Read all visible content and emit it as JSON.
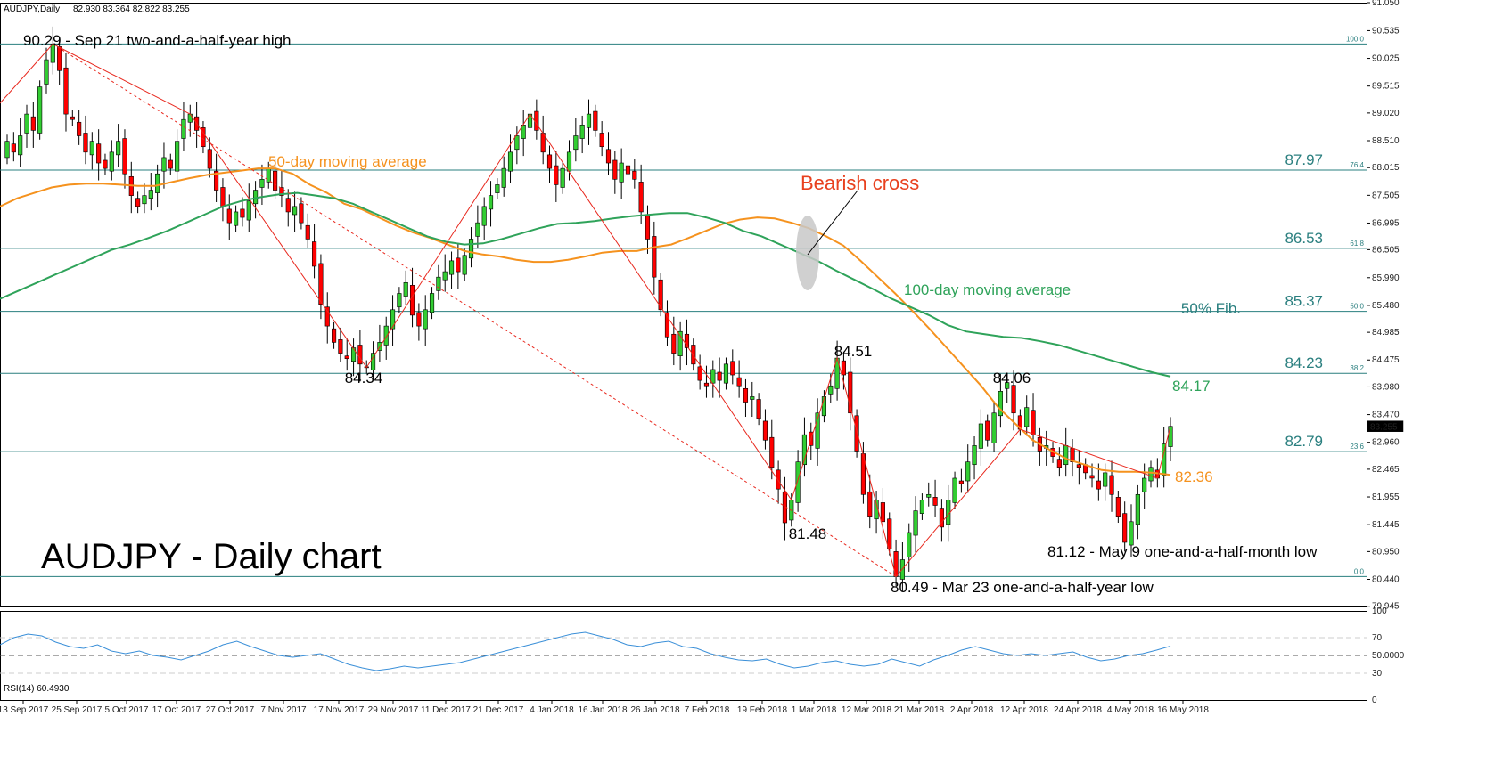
{
  "header": {
    "symbol": "AUDJPY,Daily",
    "ohlc": "82.930 83.364 82.822 83.255"
  },
  "big_title": "AUDJPY - Daily chart",
  "current_price": "83.255",
  "colors": {
    "bull": "#32cd32",
    "bear": "#ff0000",
    "ma50": "#f5921e",
    "ma100": "#2fa35a",
    "fib": "#2a7f7f",
    "zigzag": "#e8281e",
    "rsi": "#3a8fd8"
  },
  "chart_data": [
    {
      "type": "candlestick",
      "ylim": [
        79.94,
        91.05
      ],
      "y_ticks": [
        "91.050",
        "90.535",
        "90.025",
        "89.515",
        "89.020",
        "88.510",
        "88.015",
        "87.505",
        "86.995",
        "86.505",
        "85.990",
        "85.480",
        "84.985",
        "84.475",
        "83.980",
        "83.470",
        "82.960",
        "82.465",
        "81.955",
        "81.445",
        "80.950",
        "80.440",
        "79.945"
      ],
      "x_tick_labels": [
        "13 Sep 2017",
        "25 Sep 2017",
        "5 Oct 2017",
        "17 Oct 2017",
        "27 Oct 2017",
        "7 Nov 2017",
        "17 Nov 2017",
        "29 Nov 2017",
        "11 Dec 2017",
        "21 Dec 2017",
        "4 Jan 2018",
        "16 Jan 2018",
        "26 Jan 2018",
        "7 Feb 2018",
        "19 Feb 2018",
        "1 Mar 2018",
        "12 Mar 2018",
        "21 Mar 2018",
        "2 Apr 2018",
        "12 Apr 2018",
        "24 Apr 2018",
        "4 May 2018",
        "16 May 2018"
      ],
      "close": [
        88.5,
        88.3,
        88.6,
        89.0,
        88.7,
        89.5,
        90.0,
        90.29,
        89.8,
        89.0,
        88.9,
        88.6,
        88.3,
        88.5,
        88.1,
        88.0,
        88.3,
        88.5,
        87.9,
        87.5,
        87.3,
        87.5,
        87.6,
        87.9,
        88.2,
        88.0,
        88.5,
        88.9,
        89.0,
        88.7,
        88.4,
        88.0,
        87.6,
        87.3,
        87.0,
        87.2,
        87.1,
        87.4,
        87.6,
        87.8,
        88.0,
        87.6,
        87.5,
        87.2,
        87.3,
        87.0,
        86.7,
        86.2,
        85.5,
        85.1,
        84.8,
        84.6,
        84.5,
        84.7,
        84.4,
        84.34,
        84.6,
        84.8,
        85.1,
        85.4,
        85.7,
        85.9,
        85.3,
        85.1,
        85.4,
        85.7,
        86.0,
        86.1,
        86.3,
        86.1,
        86.4,
        86.7,
        87.0,
        87.3,
        87.5,
        87.7,
        88.0,
        88.3,
        88.6,
        88.8,
        89.0,
        88.7,
        88.3,
        88.0,
        87.7,
        88.0,
        88.3,
        88.6,
        88.8,
        89.0,
        88.7,
        88.4,
        88.1,
        87.8,
        88.1,
        87.9,
        87.8,
        87.2,
        86.7,
        86.0,
        85.4,
        84.9,
        84.6,
        85.0,
        84.7,
        84.4,
        84.1,
        84.0,
        84.3,
        84.1,
        84.4,
        84.2,
        84.0,
        83.7,
        83.8,
        83.4,
        83.0,
        82.5,
        82.1,
        81.48,
        81.9,
        82.6,
        83.1,
        82.9,
        83.5,
        83.8,
        84.0,
        84.51,
        84.2,
        83.5,
        82.8,
        82.0,
        81.6,
        81.9,
        81.5,
        81.0,
        80.49,
        80.8,
        81.3,
        81.7,
        81.9,
        82.0,
        81.8,
        81.4,
        81.9,
        82.3,
        82.2,
        82.6,
        82.9,
        83.3,
        83.0,
        83.5,
        83.9,
        84.06,
        83.5,
        83.2,
        83.6,
        83.1,
        82.8,
        82.9,
        82.7,
        82.5,
        82.9,
        82.6,
        82.5,
        82.4,
        82.3,
        82.1,
        82.4,
        82.0,
        81.6,
        81.12,
        81.5,
        82.0,
        82.3,
        82.5,
        82.3,
        82.93,
        83.255
      ],
      "series": [
        {
          "name": "50-day moving average",
          "values": [
            87.3,
            87.45,
            87.55,
            87.65,
            87.7,
            87.72,
            87.72,
            87.7,
            87.68,
            87.68,
            87.75,
            87.82,
            87.88,
            87.92,
            87.96,
            88.0,
            88.0,
            87.9,
            87.7,
            87.55,
            87.35,
            87.25,
            87.1,
            86.95,
            86.82,
            86.72,
            86.6,
            86.48,
            86.42,
            86.38,
            86.32,
            86.28,
            86.28,
            86.32,
            86.38,
            86.45,
            86.48,
            86.48,
            86.55,
            86.6,
            86.72,
            86.85,
            86.98,
            87.06,
            87.1,
            87.08,
            87.0,
            86.9,
            86.75,
            86.58,
            86.3,
            86.0,
            85.7,
            85.38,
            85.05,
            84.7,
            84.35,
            84.0,
            83.6,
            83.3,
            83.0,
            82.82,
            82.65,
            82.55,
            82.45,
            82.42,
            82.42,
            82.4,
            82.36
          ]
        },
        {
          "name": "100-day moving average",
          "values": [
            85.6,
            85.75,
            85.9,
            86.05,
            86.2,
            86.35,
            86.5,
            86.6,
            86.72,
            86.85,
            87.0,
            87.15,
            87.3,
            87.4,
            87.47,
            87.52,
            87.55,
            87.5,
            87.45,
            87.35,
            87.2,
            87.05,
            86.9,
            86.75,
            86.65,
            86.6,
            86.62,
            86.7,
            86.8,
            86.9,
            86.98,
            87.0,
            87.03,
            87.08,
            87.12,
            87.15,
            87.18,
            87.18,
            87.1,
            87.0,
            86.85,
            86.75,
            86.6,
            86.45,
            86.3,
            86.12,
            85.95,
            85.78,
            85.6,
            85.45,
            85.3,
            85.12,
            85.0,
            84.95,
            84.9,
            84.88,
            84.82,
            84.75,
            84.65,
            84.55,
            84.45,
            84.35,
            84.25,
            84.17
          ]
        },
        {
          "name": "RSI(14) 60.4930",
          "values": [
            62,
            70,
            74,
            72,
            65,
            60,
            58,
            62,
            55,
            52,
            55,
            50,
            48,
            45,
            50,
            55,
            62,
            66,
            60,
            55,
            50,
            48,
            50,
            52,
            46,
            40,
            36,
            33,
            35,
            38,
            36,
            38,
            40,
            42,
            46,
            50,
            54,
            58,
            62,
            66,
            70,
            74,
            76,
            72,
            68,
            62,
            60,
            64,
            66,
            60,
            58,
            52,
            48,
            45,
            44,
            46,
            40,
            36,
            38,
            42,
            44,
            40,
            38,
            40,
            46,
            42,
            38,
            45,
            50,
            56,
            60,
            56,
            52,
            50,
            52,
            50,
            52,
            54,
            48,
            44,
            46,
            50,
            52,
            56,
            60.49
          ]
        }
      ],
      "annotations": [
        "90.29 - Sep 21 two-and-a-half-year high",
        "50-day moving average",
        "Bearish cross",
        "100-day moving average",
        "50% Fib.",
        "84.51",
        "84.06",
        "84.34",
        "81.48",
        "81.12 - May 9 one-and-a-half-month low",
        "80.49 - Mar 23 one-and-a-half-year low",
        "84.17",
        "82.36"
      ],
      "fib_levels": [
        {
          "pct": "100.0",
          "price": 90.29,
          "label": ""
        },
        {
          "pct": "76.4",
          "price": 87.97,
          "label": "87.97"
        },
        {
          "pct": "61.8",
          "price": 86.53,
          "label": "86.53"
        },
        {
          "pct": "50.0",
          "price": 85.37,
          "label": "85.37"
        },
        {
          "pct": "38.2",
          "price": 84.23,
          "label": "84.23"
        },
        {
          "pct": "23.6",
          "price": 82.79,
          "label": "82.79"
        },
        {
          "pct": "0.0",
          "price": 80.49,
          "label": ""
        }
      ]
    },
    {
      "type": "line",
      "title": "RSI(14) 60.4930",
      "ylim": [
        0,
        100
      ],
      "y_ticks": [
        "100",
        "70",
        "50.0000",
        "30",
        "0"
      ]
    }
  ]
}
